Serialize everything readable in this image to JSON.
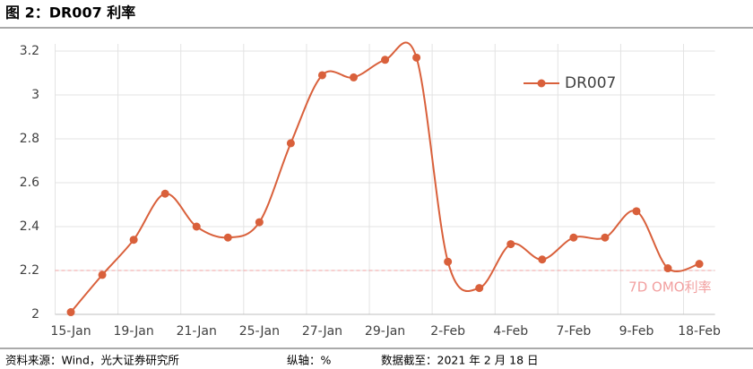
{
  "header": {
    "title": "图 2：DR007 利率"
  },
  "chart_data": {
    "type": "line",
    "categories": [
      "15-Jan",
      null,
      "19-Jan",
      null,
      "21-Jan",
      null,
      "25-Jan",
      null,
      "27-Jan",
      null,
      "29-Jan",
      null,
      "2-Feb",
      null,
      "4-Feb",
      null,
      "7-Feb",
      null,
      "9-Feb",
      null,
      "18-Feb"
    ],
    "series": [
      {
        "name": "DR007",
        "color": "#d9603b",
        "values": [
          2.01,
          2.18,
          2.34,
          2.55,
          2.4,
          2.35,
          2.42,
          2.78,
          3.09,
          3.08,
          3.16,
          3.17,
          2.24,
          2.12,
          2.32,
          2.25,
          2.35,
          2.35,
          2.47,
          2.21,
          2.23
        ]
      }
    ],
    "ylim": [
      2,
      3.2
    ],
    "yticks": [
      2,
      2.2,
      2.4,
      2.6,
      2.8,
      3,
      3.2
    ],
    "grid": true,
    "legend": "top-right",
    "reference_lines": [
      {
        "value": 2.2,
        "label": "7D OMO利率",
        "color": "#f2a0a0"
      }
    ]
  },
  "footer": {
    "source": "资料来源：Wind，光大证券研究所",
    "y_unit": "纵轴：%",
    "as_of": "数据截至：2021 年 2 月 18 日"
  }
}
